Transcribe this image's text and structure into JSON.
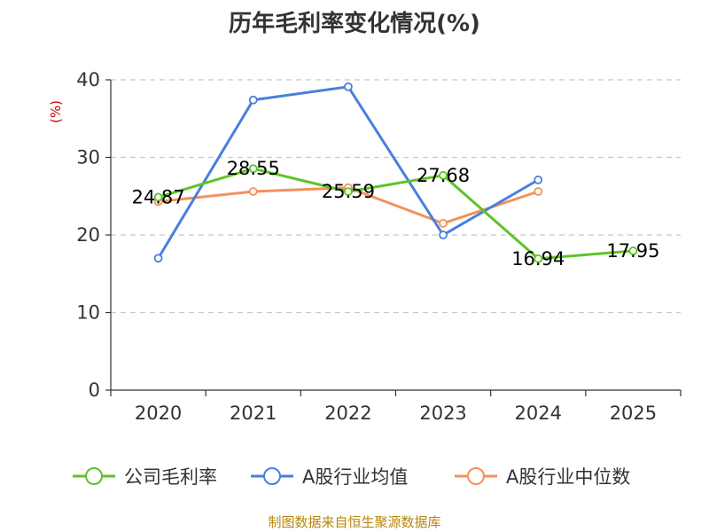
{
  "chart_data": {
    "type": "line",
    "title": "历年毛利率变化情况(%)",
    "ylabel": "(%)",
    "xlabel": "",
    "ylim": [
      0,
      40
    ],
    "y_ticks": [
      "0",
      "10",
      "20",
      "30",
      "40"
    ],
    "categories": [
      "2020",
      "2021",
      "2022",
      "2023",
      "2024",
      "2025"
    ],
    "grid": "horizontal-dashed",
    "legend_position": "bottom",
    "series": [
      {
        "name": "公司毛利率",
        "color": "#5dc424",
        "values": [
          24.87,
          28.55,
          25.59,
          27.68,
          16.94,
          17.95
        ],
        "labels": [
          "24.87",
          "28.55",
          "25.59",
          "27.68",
          "16.94",
          "17.95"
        ]
      },
      {
        "name": "A股行业均值",
        "color": "#4a7fdc",
        "values": [
          17.0,
          37.4,
          39.1,
          20.0,
          27.1,
          null
        ]
      },
      {
        "name": "A股行业中位数",
        "color": "#f5905a",
        "values": [
          24.3,
          25.6,
          26.1,
          21.5,
          25.6,
          null
        ]
      }
    ],
    "source": "制图数据来自恒生聚源数据库"
  }
}
